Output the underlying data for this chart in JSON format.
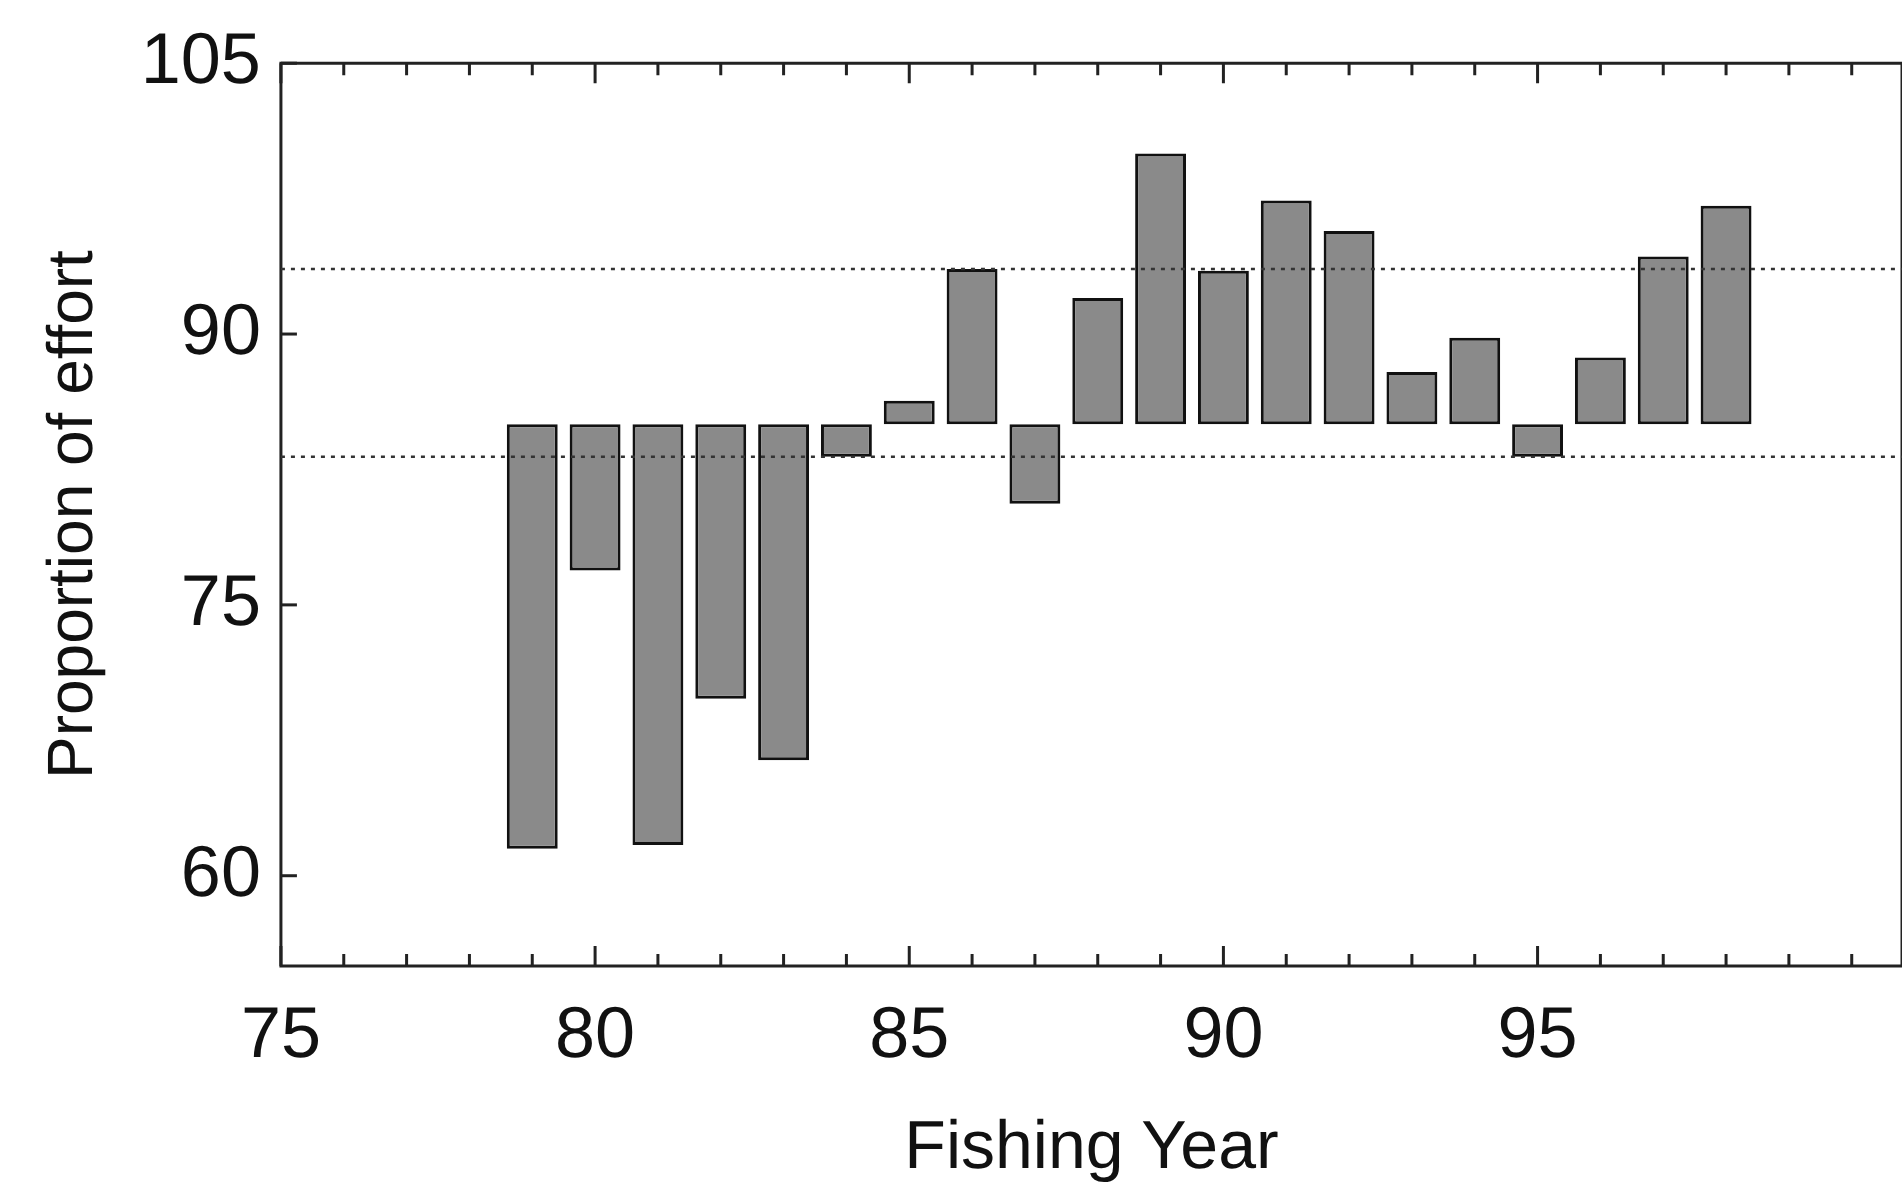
{
  "chart_data": {
    "type": "bar",
    "xlabel": "Fishing Year",
    "ylabel": "Proportion of effort",
    "x": [
      79,
      80,
      81,
      82,
      83,
      84,
      85,
      86,
      87,
      88,
      89,
      90,
      91,
      92,
      93,
      94,
      95,
      96,
      97,
      98
    ],
    "base": [
      85,
      85,
      85,
      85,
      85,
      85,
      85,
      85,
      85,
      85,
      85,
      85,
      85,
      85,
      85,
      85,
      85,
      85,
      85,
      85
    ],
    "values": [
      -23.5,
      -8.1,
      -23.3,
      -15.2,
      -18.6,
      -1.8,
      1.3,
      8.6,
      -4.4,
      7.0,
      15.0,
      8.5,
      12.4,
      10.7,
      2.9,
      4.8,
      -1.8,
      3.7,
      9.3,
      12.1
    ],
    "color": "#8a8a8a",
    "xlim": [
      75,
      100.8
    ],
    "xticks": [
      75,
      {
        "value": 76,
        "label": null
      },
      {
        "value": 77,
        "label": null
      },
      {
        "value": 78,
        "label": null
      },
      {
        "value": 79,
        "label": null
      },
      80,
      {
        "value": 81,
        "label": null
      },
      {
        "value": 82,
        "label": null
      },
      {
        "value": 83,
        "label": null
      },
      {
        "value": 84,
        "label": null
      },
      85,
      {
        "value": 86,
        "label": null
      },
      {
        "value": 87,
        "label": null
      },
      {
        "value": 88,
        "label": null
      },
      {
        "value": 89,
        "label": null
      },
      90,
      {
        "value": 91,
        "label": null
      },
      {
        "value": 92,
        "label": null
      },
      {
        "value": 93,
        "label": null
      },
      {
        "value": 94,
        "label": null
      },
      95,
      {
        "value": 96,
        "label": null
      },
      {
        "value": 97,
        "label": null
      },
      {
        "value": 98,
        "label": null
      },
      {
        "value": 99,
        "label": null
      },
      {
        "value": 100,
        "label": null
      }
    ],
    "ylim": [
      55,
      105
    ],
    "yticks": [
      60,
      75,
      90,
      105
    ],
    "ref_lines": [
      {
        "axis": "y",
        "value": 93.6,
        "line_style": "dotted"
      },
      {
        "axis": "y",
        "value": 83.2,
        "line_style": "dotted"
      }
    ],
    "grid": false,
    "legend": false
  }
}
